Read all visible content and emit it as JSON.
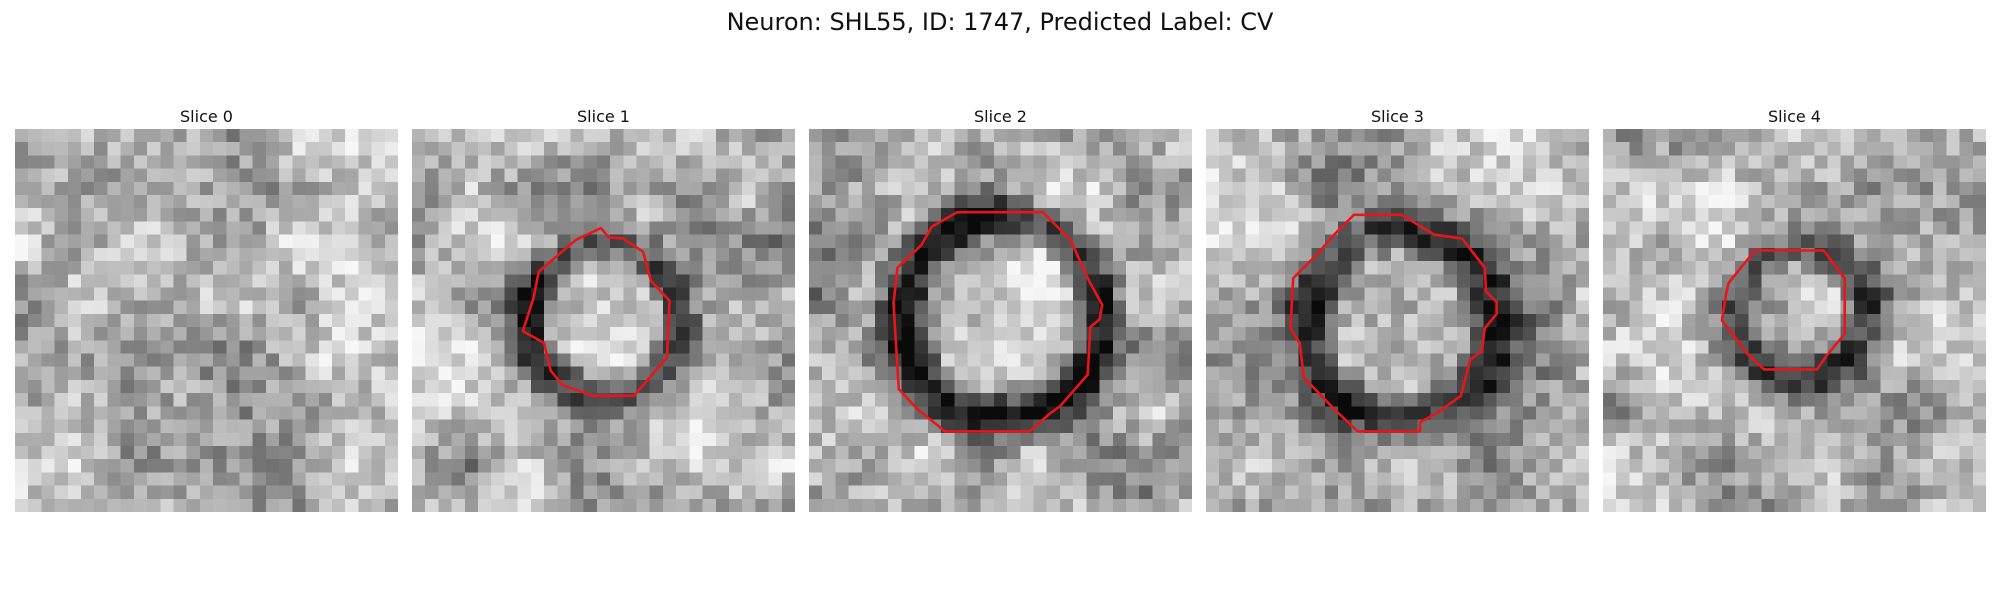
{
  "figure": {
    "title": "Neuron: SHL55, ID: 1747, Predicted Label: CV"
  },
  "slices": [
    {
      "title": "Slice 0",
      "contour": false
    },
    {
      "title": "Slice 1",
      "contour": true
    },
    {
      "title": "Slice 2",
      "contour": true
    },
    {
      "title": "Slice 3",
      "contour": true
    },
    {
      "title": "Slice 4",
      "contour": true
    }
  ],
  "style": {
    "contour_color": "#e8161a"
  }
}
